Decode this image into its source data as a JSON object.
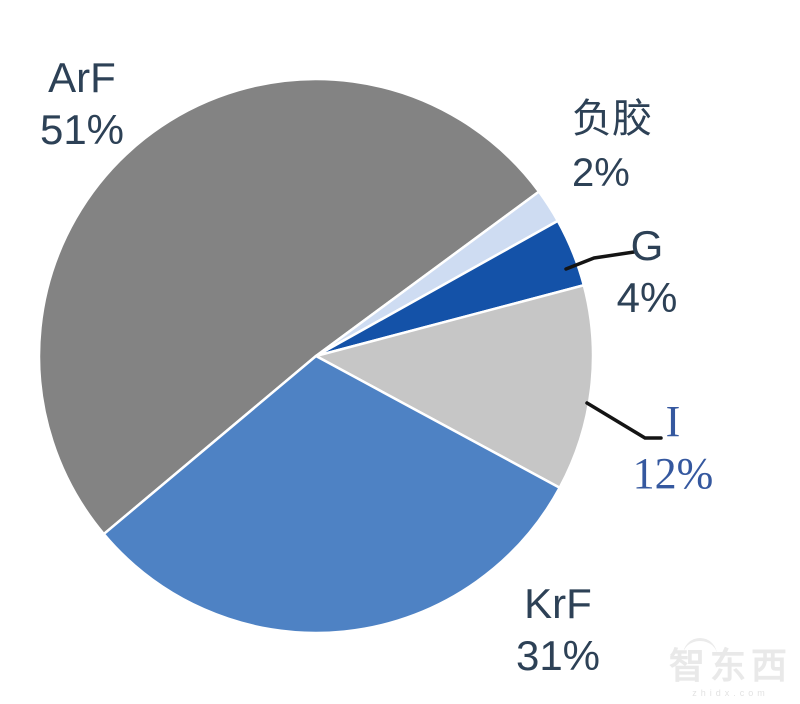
{
  "chart_data": {
    "type": "pie",
    "title": "",
    "legend_position": "none",
    "labels_outside": true,
    "direction": "clockwise",
    "start_angle_deg": 230,
    "slices": [
      {
        "label": "ArF",
        "value": 51,
        "pct_text": "51%",
        "color": "#838383"
      },
      {
        "label": "负胶",
        "value": 2,
        "pct_text": "2%",
        "color": "#cedcf2"
      },
      {
        "label": "G",
        "value": 4,
        "pct_text": "4%",
        "color": "#1452a8"
      },
      {
        "label": "I",
        "value": 12,
        "pct_text": "12%",
        "color": "#c6c6c6"
      },
      {
        "label": "KrF",
        "value": 31,
        "pct_text": "31%",
        "color": "#4e82c4"
      }
    ],
    "leader_line_color": "#141414",
    "label_text_color": "#2d4156",
    "slice_border_color": "#ffffff"
  },
  "watermark": {
    "logo_text": "智东西",
    "site_text": "zhidx.com"
  }
}
